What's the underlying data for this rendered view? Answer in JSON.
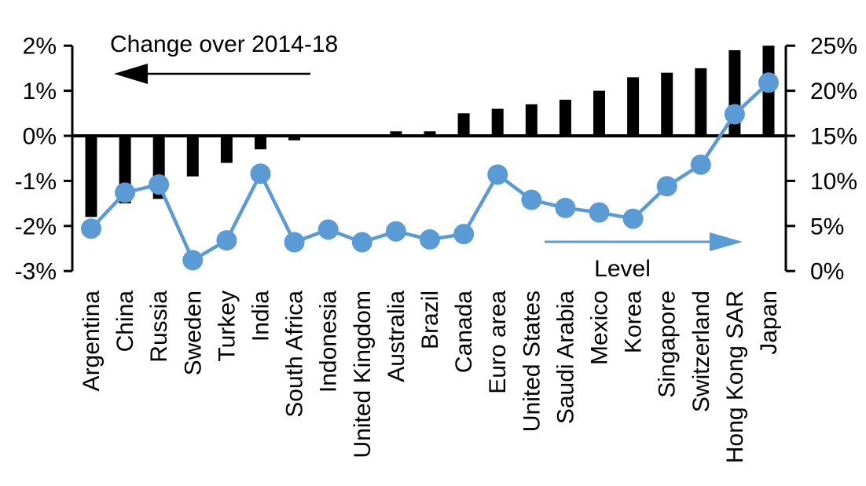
{
  "chart_data": {
    "type": "combo-bar-line",
    "categories": [
      "Argentina",
      "China",
      "Russia",
      "Sweden",
      "Turkey",
      "India",
      "South Africa",
      "Indonesia",
      "United Kingdom",
      "Australia",
      "Brazil",
      "Canada",
      "Euro area",
      "United States",
      "Saudi Arabia",
      "Mexico",
      "Korea",
      "Singapore",
      "Switzerland",
      "Hong Kong SAR",
      "Japan"
    ],
    "series": [
      {
        "name": "Change over 2014-18",
        "type": "bar",
        "axis": "left",
        "color": "#000000",
        "values": [
          -1.8,
          -1.5,
          -1.4,
          -0.9,
          -0.6,
          -0.3,
          -0.1,
          0,
          0,
          0.1,
          0.1,
          0.5,
          0.6,
          0.7,
          0.8,
          1.0,
          1.3,
          1.4,
          1.5,
          1.9,
          2.0
        ]
      },
      {
        "name": "Level",
        "type": "line",
        "axis": "right",
        "color": "#5B9BD5",
        "values": [
          4.7,
          8.7,
          9.6,
          1.2,
          3.4,
          10.8,
          3.2,
          4.6,
          3.2,
          4.4,
          3.5,
          4.1,
          10.7,
          7.9,
          7.0,
          6.5,
          5.8,
          9.4,
          11.8,
          17.4,
          20.9
        ]
      }
    ],
    "left_axis": {
      "unit": "%",
      "ticks": [
        2,
        1,
        0,
        -1,
        -2,
        -3
      ],
      "tick_labels": [
        "2%",
        "1%",
        "0%",
        "-1%",
        "-2%",
        "-3%"
      ],
      "range": [
        -3,
        2
      ]
    },
    "right_axis": {
      "unit": "%",
      "ticks": [
        25,
        20,
        15,
        10,
        5,
        0
      ],
      "tick_labels": [
        "25%",
        "20%",
        "15%",
        "10%",
        "5%",
        "0%"
      ],
      "range": [
        0,
        25
      ]
    },
    "annotations": [
      {
        "text": "Change over 2014-18",
        "text_color": "#000000",
        "arrow_color": "#000000",
        "arrow_direction": "left"
      },
      {
        "text": "Level",
        "text_color": "#000000",
        "arrow_color": "#5B9BD5",
        "arrow_direction": "right"
      }
    ],
    "grid": false,
    "legend_position": "in-plot-arrows",
    "background": "#FFFFFF"
  }
}
